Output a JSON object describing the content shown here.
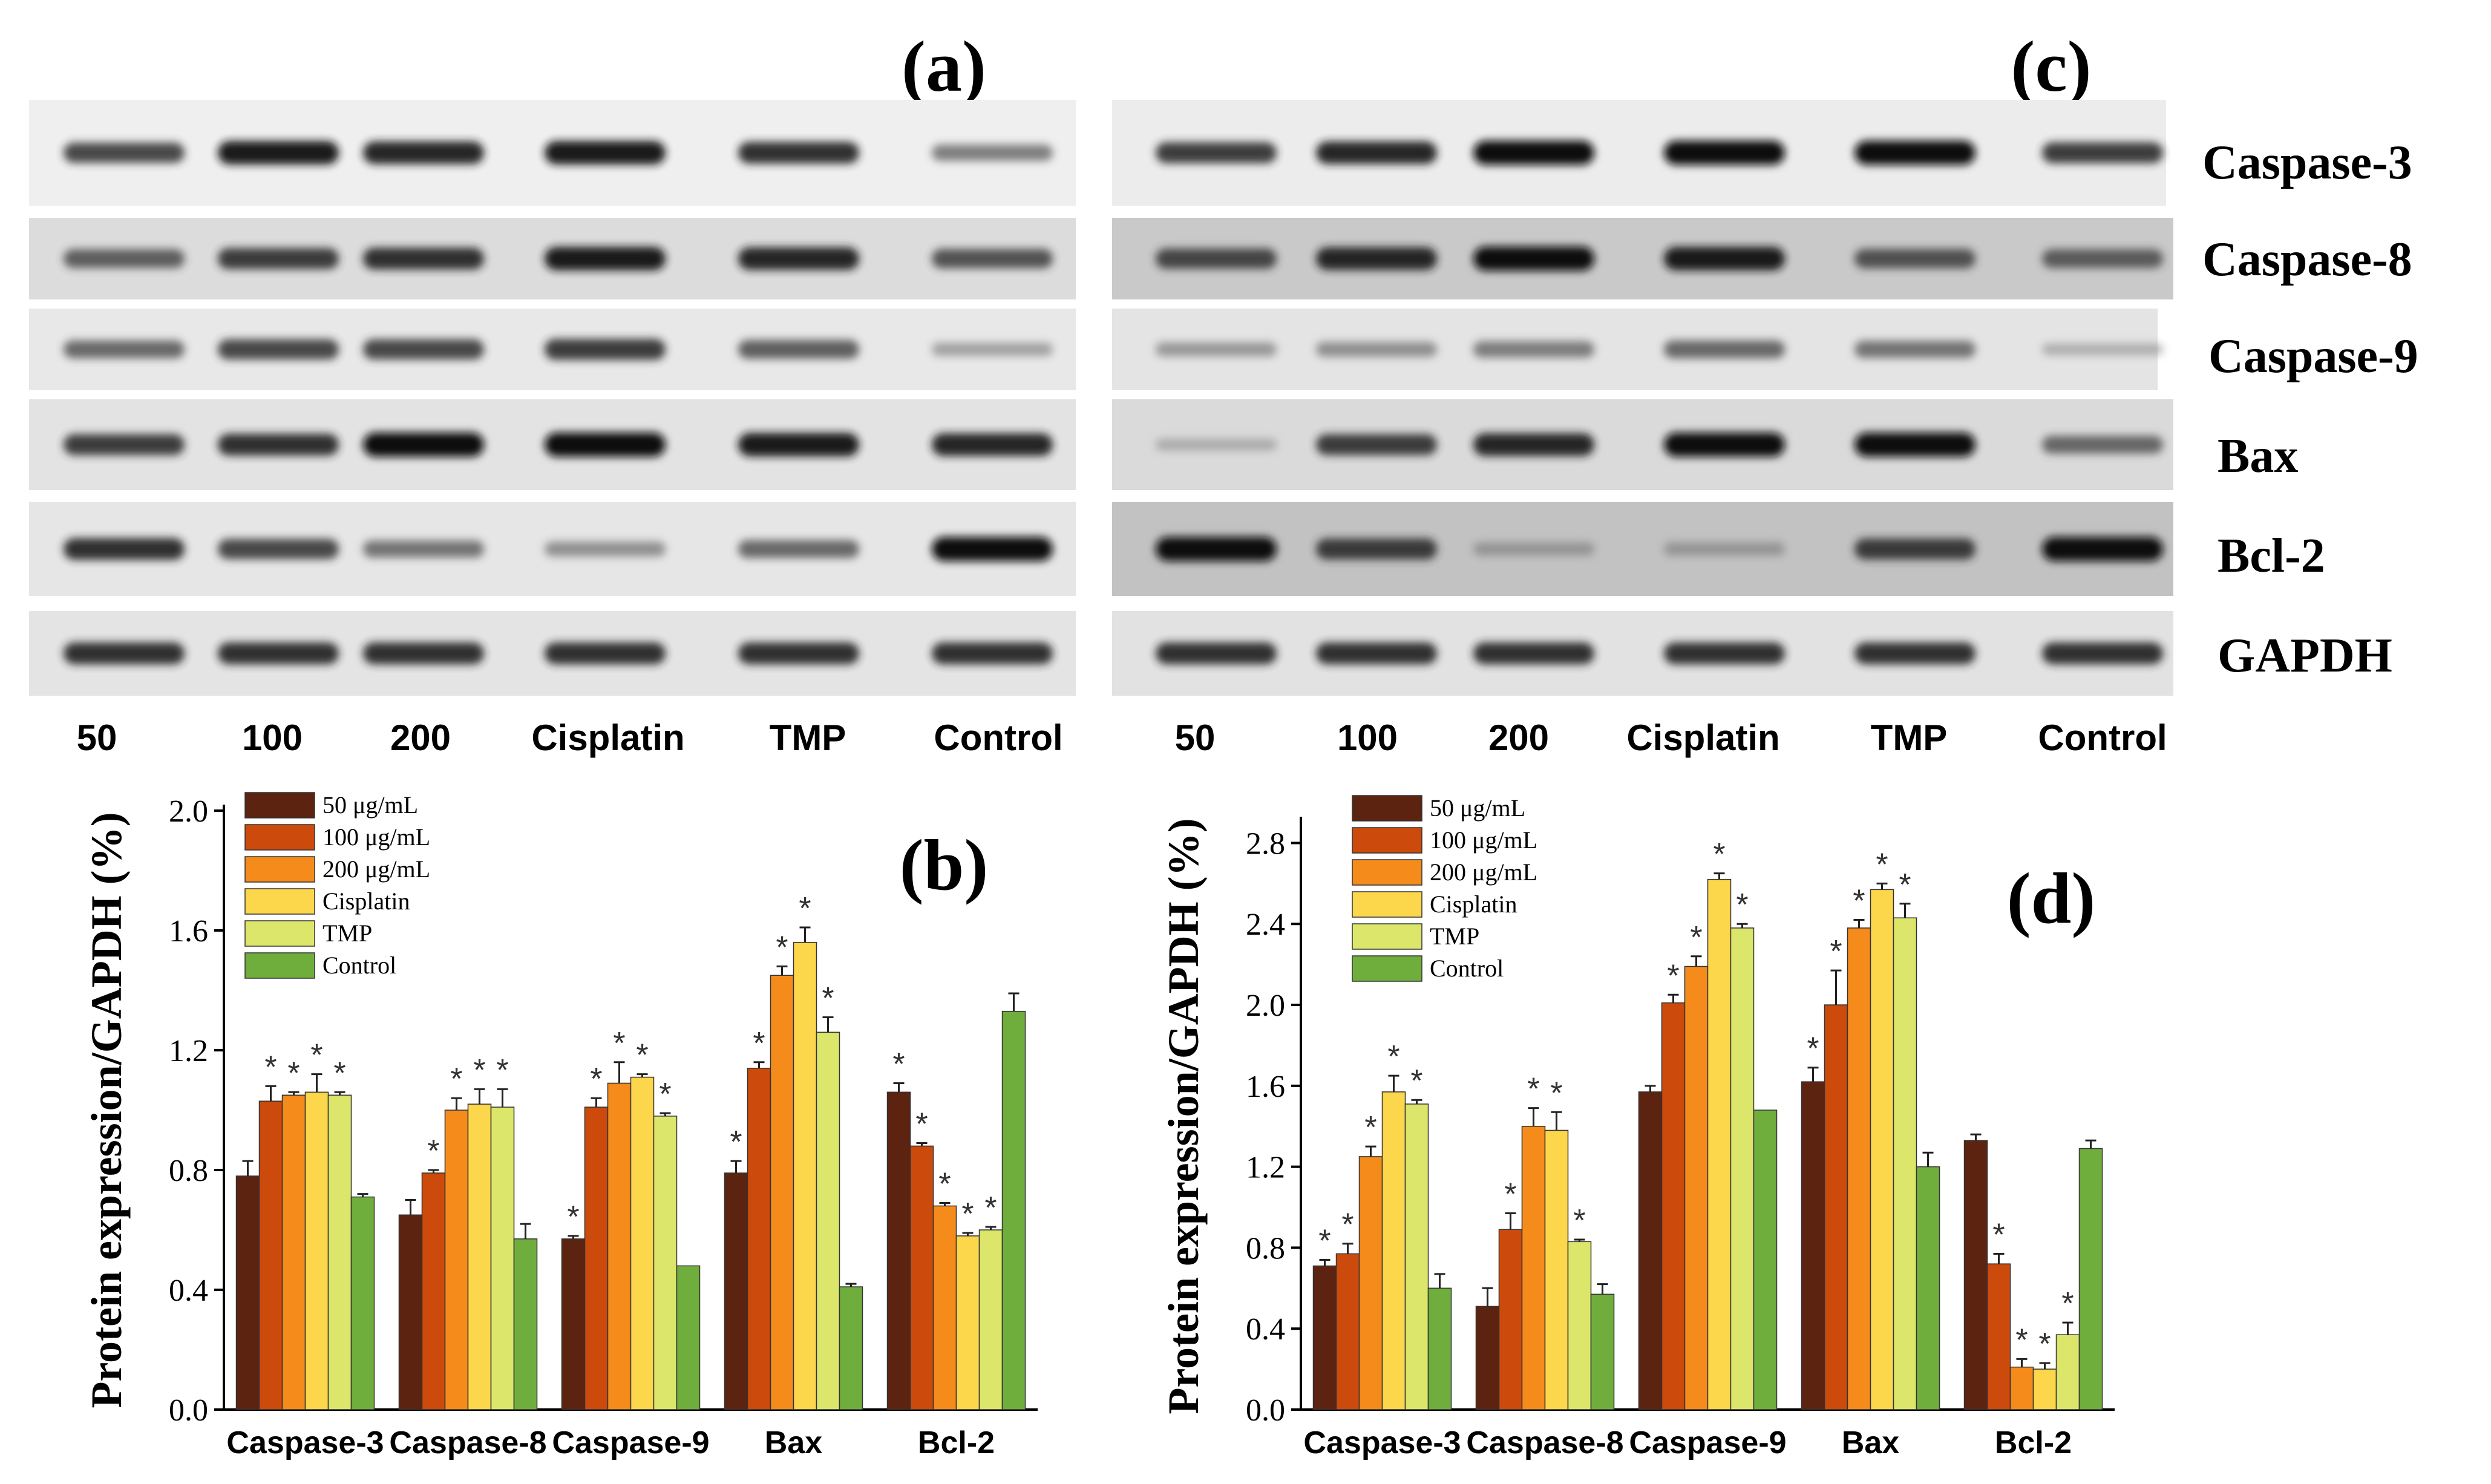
{
  "figure": {
    "panel_labels": [
      "(a)",
      "(b)",
      "(c)",
      "(d)"
    ],
    "proteins": [
      "Caspase-3",
      "Caspase-8",
      "Caspase-9",
      "Bax",
      "Bcl-2",
      "GAPDH"
    ],
    "lanes": [
      "50",
      "100",
      "200",
      "Cisplatin",
      "TMP",
      "Control"
    ],
    "colors": {
      "50": "#5c2410",
      "100": "#cc4a0c",
      "200": "#f48b1b",
      "Cisplatin": "#fcd64b",
      "TMP": "#dbe66b",
      "Control": "#6fae3c"
    }
  },
  "blots": {
    "a": {
      "intensity": [
        [
          0.75,
          0.95,
          0.9,
          0.95,
          0.85,
          0.5
        ],
        [
          0.65,
          0.8,
          0.85,
          0.95,
          0.9,
          0.7
        ],
        [
          0.6,
          0.75,
          0.75,
          0.8,
          0.65,
          0.3
        ],
        [
          0.8,
          0.85,
          1.0,
          1.0,
          0.95,
          0.9
        ],
        [
          0.85,
          0.75,
          0.55,
          0.4,
          0.6,
          1.0
        ],
        [
          0.85,
          0.85,
          0.85,
          0.85,
          0.85,
          0.85
        ]
      ]
    },
    "c": {
      "intensity": [
        [
          0.8,
          0.9,
          1.0,
          1.0,
          1.0,
          0.8
        ],
        [
          0.75,
          0.9,
          1.0,
          0.95,
          0.7,
          0.65
        ],
        [
          0.35,
          0.4,
          0.5,
          0.6,
          0.55,
          0.2
        ],
        [
          0.2,
          0.8,
          0.9,
          1.0,
          1.0,
          0.6
        ],
        [
          1.0,
          0.8,
          0.3,
          0.3,
          0.8,
          1.0
        ],
        [
          0.85,
          0.85,
          0.85,
          0.85,
          0.85,
          0.85
        ]
      ]
    }
  },
  "chart_data": [
    {
      "panel": "(b)",
      "type": "bar",
      "ylabel": "Protein expression/GAPDH (%)",
      "ylim": [
        0,
        2.0
      ],
      "yticks": [
        "0.0",
        "0.4",
        "0.8",
        "1.2",
        "1.6",
        "2.0"
      ],
      "categories": [
        "Caspase-3",
        "Caspase-8",
        "Caspase-9",
        "Bax",
        "Bcl-2"
      ],
      "series": [
        {
          "name": "50 μg/mL",
          "values": [
            0.78,
            0.65,
            0.57,
            0.79,
            1.06
          ],
          "errors": [
            0.05,
            0.05,
            0.01,
            0.04,
            0.03
          ],
          "sig": [
            false,
            false,
            true,
            true,
            true
          ]
        },
        {
          "name": "100 μg/mL",
          "values": [
            1.03,
            0.79,
            1.01,
            1.14,
            0.88
          ],
          "errors": [
            0.05,
            0.01,
            0.03,
            0.02,
            0.01
          ],
          "sig": [
            true,
            true,
            true,
            true,
            true
          ]
        },
        {
          "name": "200 μg/mL",
          "values": [
            1.05,
            1.0,
            1.09,
            1.45,
            0.68
          ],
          "errors": [
            0.01,
            0.04,
            0.07,
            0.03,
            0.01
          ],
          "sig": [
            true,
            true,
            true,
            true,
            true
          ]
        },
        {
          "name": "Cisplatin",
          "values": [
            1.06,
            1.02,
            1.11,
            1.56,
            0.58
          ],
          "errors": [
            0.06,
            0.05,
            0.01,
            0.05,
            0.01
          ],
          "sig": [
            true,
            true,
            true,
            true,
            true
          ]
        },
        {
          "name": "TMP",
          "values": [
            1.05,
            1.01,
            0.98,
            1.26,
            0.6
          ],
          "errors": [
            0.01,
            0.06,
            0.01,
            0.05,
            0.01
          ],
          "sig": [
            true,
            true,
            true,
            true,
            true
          ]
        },
        {
          "name": "Control",
          "values": [
            0.71,
            0.57,
            0.48,
            0.41,
            1.33
          ],
          "errors": [
            0.01,
            0.05,
            0.0,
            0.01,
            0.06
          ],
          "sig": [
            false,
            false,
            false,
            false,
            false
          ]
        }
      ]
    },
    {
      "panel": "(d)",
      "type": "bar",
      "ylabel": "Protein expression/GAPDH (%)",
      "ylim": [
        0,
        2.9
      ],
      "yticks": [
        "0.0",
        "0.4",
        "0.8",
        "1.2",
        "1.6",
        "2.0",
        "2.4",
        "2.8"
      ],
      "categories": [
        "Caspase-3",
        "Caspase-8",
        "Caspase-9",
        "Bax",
        "Bcl-2"
      ],
      "series": [
        {
          "name": "50 μg/mL",
          "values": [
            0.71,
            0.51,
            1.57,
            1.62,
            1.33
          ],
          "errors": [
            0.03,
            0.09,
            0.03,
            0.07,
            0.03
          ],
          "sig": [
            true,
            false,
            false,
            true,
            false
          ]
        },
        {
          "name": "100 μg/mL",
          "values": [
            0.77,
            0.89,
            2.01,
            2.0,
            0.72
          ],
          "errors": [
            0.05,
            0.08,
            0.04,
            0.17,
            0.05
          ],
          "sig": [
            true,
            true,
            true,
            true,
            true
          ]
        },
        {
          "name": "200 μg/mL",
          "values": [
            1.25,
            1.4,
            2.19,
            2.38,
            0.21
          ],
          "errors": [
            0.05,
            0.09,
            0.05,
            0.04,
            0.04
          ],
          "sig": [
            true,
            true,
            true,
            true,
            true
          ]
        },
        {
          "name": "Cisplatin",
          "values": [
            1.57,
            1.38,
            2.62,
            2.57,
            0.2
          ],
          "errors": [
            0.08,
            0.09,
            0.03,
            0.03,
            0.03
          ],
          "sig": [
            true,
            true,
            true,
            true,
            true
          ]
        },
        {
          "name": "TMP",
          "values": [
            1.51,
            0.83,
            2.38,
            2.43,
            0.37
          ],
          "errors": [
            0.02,
            0.01,
            0.02,
            0.07,
            0.06
          ],
          "sig": [
            true,
            true,
            true,
            true,
            true
          ]
        },
        {
          "name": "Control",
          "values": [
            0.6,
            0.57,
            1.48,
            1.2,
            1.29
          ],
          "errors": [
            0.07,
            0.05,
            0.0,
            0.07,
            0.04
          ],
          "sig": [
            false,
            false,
            false,
            false,
            false
          ]
        }
      ]
    }
  ]
}
